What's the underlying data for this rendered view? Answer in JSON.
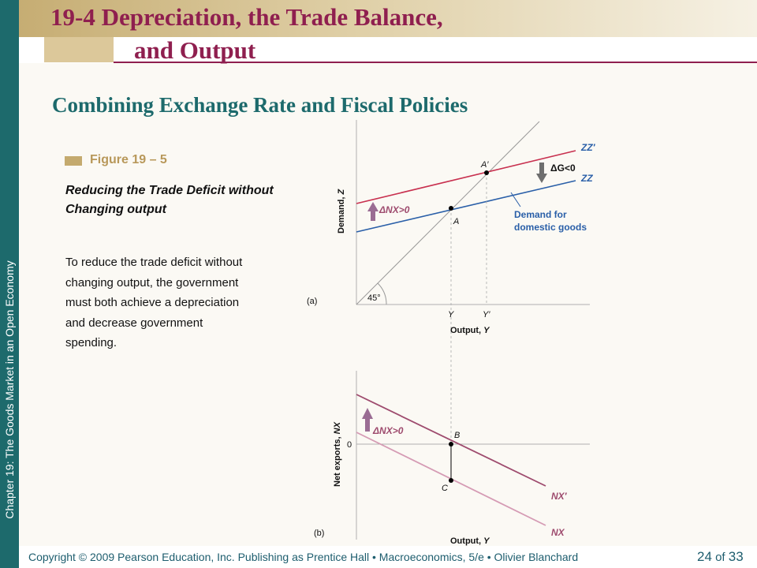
{
  "header": {
    "title_line1": "19-4  Depreciation, the Trade Balance,",
    "title_line2": "and Output"
  },
  "subtitle": "Combining Exchange Rate and Fiscal Policies",
  "side_label": "Chapter 19:  The Goods Market in an Open Economy",
  "figure": {
    "label": "Figure 19 – 5",
    "title": "Reducing the Trade Deficit without Changing output",
    "description": "To reduce the trade deficit without changing output, the government must both achieve a depreciation and decrease government spending."
  },
  "panel_a": {
    "tag": "(a)",
    "ylabel_main": "Demand, ",
    "ylabel_var": "Z",
    "xlabel_main": "Output, ",
    "xlabel_var": "Y",
    "line_45_label": "45°",
    "zz_prime_label": "ZZ′",
    "zz_label": "ZZ",
    "point_a": "A",
    "point_a_prime": "A′",
    "y_tick": "Y",
    "y_prime_tick": "Y′",
    "delta_g": "ΔG<0",
    "delta_nx": "ΔNX>0",
    "demand_label_line1": "Demand for",
    "demand_label_line2": "domestic goods"
  },
  "panel_b": {
    "tag": "(b)",
    "ylabel_main": "Net exports, ",
    "ylabel_var": "NX",
    "xlabel_main": "Output, ",
    "xlabel_var": "Y",
    "zero_label": "0",
    "point_b": "B",
    "point_c": "C",
    "nx_prime_label": "NX′",
    "nx_label": "NX",
    "delta_nx": "ΔNX>0"
  },
  "colors": {
    "teal": "#1d6a6c",
    "title_maroon": "#8f1f4f",
    "zz_red": "#c8304f",
    "zz_blue": "#2a5fa8",
    "nx_prime": "#9e4b6e",
    "nx": "#d59bb4",
    "arrow_purple": "#9a6c93",
    "arrow_gray": "#6e6e6e"
  },
  "footer": {
    "text": "Copyright © 2009 Pearson Education, Inc. Publishing as Prentice Hall  •  Macroeconomics, 5/e  •  Olivier Blanchard",
    "page_current": "24",
    "page_of": "of",
    "page_total": "33"
  }
}
